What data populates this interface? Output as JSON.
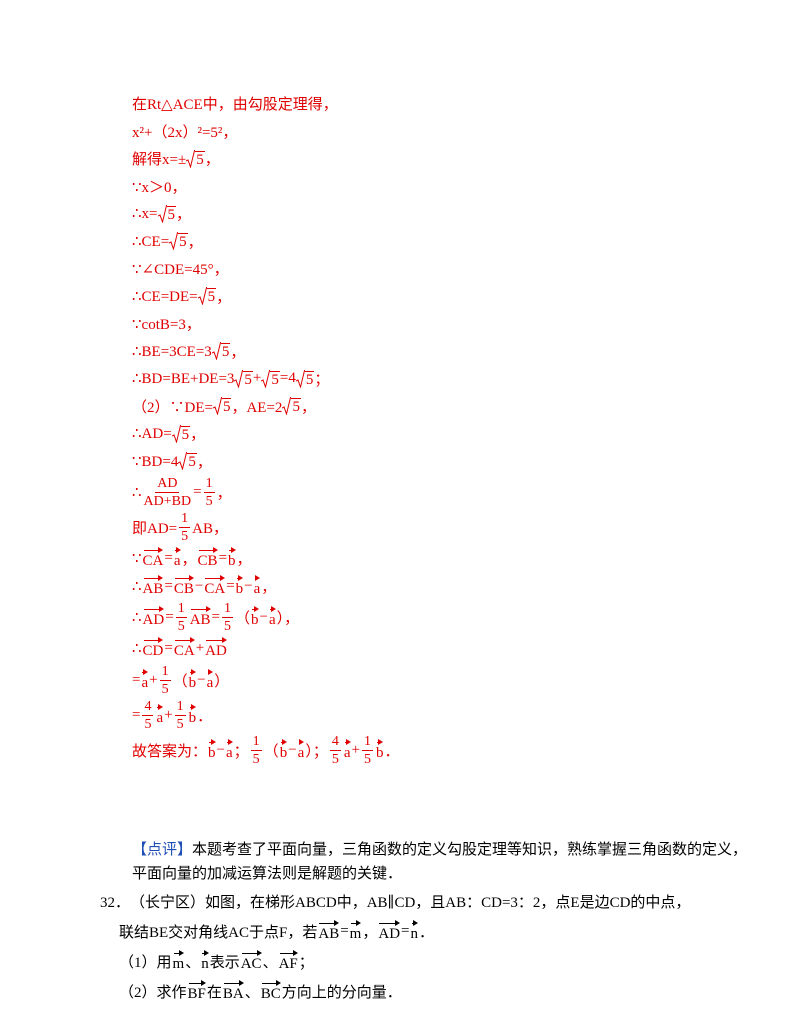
{
  "solution": [
    [
      "在Rt△ACE中，由勾股定理得，"
    ],
    [
      "x²+（2x）²=5²，"
    ],
    [
      "解得x=±",
      {
        "sqrt": "5"
      },
      "，"
    ],
    [
      "∵x＞0，"
    ],
    [
      "∴x=",
      {
        "sqrt": "5"
      },
      "，"
    ],
    [
      "∴CE=",
      {
        "sqrt": "5"
      },
      "，"
    ],
    [
      "∵∠CDE=45°，"
    ],
    [
      "∴CE=DE=",
      {
        "sqrt": "5"
      },
      "，"
    ],
    [
      "∵cotB=3，"
    ],
    [
      "∴BE=3CE=3",
      {
        "sqrt": "5"
      },
      "，"
    ],
    [
      "∴BD=BE+DE=3",
      {
        "sqrt": "5"
      },
      "+",
      {
        "sqrt": "5"
      },
      "=4",
      {
        "sqrt": "5"
      },
      "；"
    ],
    [
      "（2）∵DE=",
      {
        "sqrt": "5"
      },
      "，AE=2",
      {
        "sqrt": "5"
      },
      "，"
    ],
    [
      "∴AD=",
      {
        "sqrt": "5"
      },
      "，"
    ],
    [
      "∵BD=4",
      {
        "sqrt": "5"
      },
      "，"
    ],
    [
      "∴",
      {
        "frac": [
          "AD",
          "AD+BD"
        ]
      },
      "=",
      {
        "frac": [
          "1",
          "5"
        ]
      },
      "，"
    ],
    [
      "即AD=",
      {
        "frac": [
          "1",
          "5"
        ]
      },
      "AB，"
    ],
    [
      "∵",
      {
        "vec": "CA"
      },
      "=",
      {
        "vec": "a"
      },
      "，",
      {
        "vec": "CB"
      },
      "=",
      {
        "vec": "b"
      },
      "，"
    ],
    [
      "∴",
      {
        "vec": "AB"
      },
      "=",
      {
        "vec": "CB"
      },
      "−",
      {
        "vec": "CA"
      },
      "=",
      {
        "vec": "b"
      },
      "−",
      {
        "vec": "a"
      },
      "，"
    ],
    [
      "∴",
      {
        "vec": "AD"
      },
      "=",
      {
        "frac": [
          "1",
          "5"
        ]
      },
      {
        "vec": "AB"
      },
      "=",
      {
        "frac": [
          "1",
          "5"
        ]
      },
      "（",
      {
        "vec": "b"
      },
      "−",
      {
        "vec": "a"
      },
      "），"
    ],
    [
      "∴",
      {
        "vec": "CD"
      },
      "=",
      {
        "vec": "CA"
      },
      "+",
      {
        "vec": "AD"
      }
    ],
    [
      "=",
      {
        "vec": "a"
      },
      "+",
      {
        "frac": [
          "1",
          "5"
        ]
      },
      "（",
      {
        "vec": "b"
      },
      "−",
      {
        "vec": "a"
      },
      "）"
    ],
    [
      "=",
      {
        "frac": [
          "4",
          "5"
        ]
      },
      {
        "vec": "a"
      },
      "+",
      {
        "frac": [
          "1",
          "5"
        ]
      },
      {
        "vec": "b"
      },
      "．"
    ],
    [
      "故答案为：",
      {
        "vec": "b"
      },
      "−",
      {
        "vec": "a"
      },
      "；",
      {
        "frac": [
          "1",
          "5"
        ]
      },
      "（",
      {
        "vec": "b"
      },
      "−",
      {
        "vec": "a"
      },
      "）；",
      {
        "frac": [
          "4",
          "5"
        ]
      },
      {
        "vec": "a"
      },
      "+",
      {
        "frac": [
          "1",
          "5"
        ]
      },
      {
        "vec": "b"
      },
      "．"
    ]
  ],
  "comment": {
    "label": "【点评】",
    "lines": [
      [
        "本题考查了平面向量，三角函数的定义勾股定理等知识，熟练掌握三角函数的定义，"
      ],
      [
        "平面向量的加减运算法则是解题的关键．"
      ]
    ]
  },
  "problem": {
    "number": "32．",
    "lines": [
      [
        "（长宁区）如图，在梯形ABCD中，AB∥CD，且AB：CD=3：2，点E是边CD的中点，"
      ],
      [
        "联结BE交对角线AC于点F，若",
        {
          "vec": "AB"
        },
        "=",
        {
          "vec": "m"
        },
        "，",
        {
          "vec": "AD"
        },
        "=",
        {
          "vec": "n"
        },
        "．"
      ],
      [
        "（1）用",
        {
          "vec": "m"
        },
        "、",
        {
          "vec": "n"
        },
        "表示",
        {
          "vec": "AC"
        },
        "、",
        {
          "vec": "AF"
        },
        "；"
      ],
      [
        "（2）求作",
        {
          "vec": "BF"
        },
        "在",
        {
          "vec": "BA"
        },
        "、",
        {
          "vec": "BC"
        },
        "方向上的分向量．"
      ]
    ]
  }
}
